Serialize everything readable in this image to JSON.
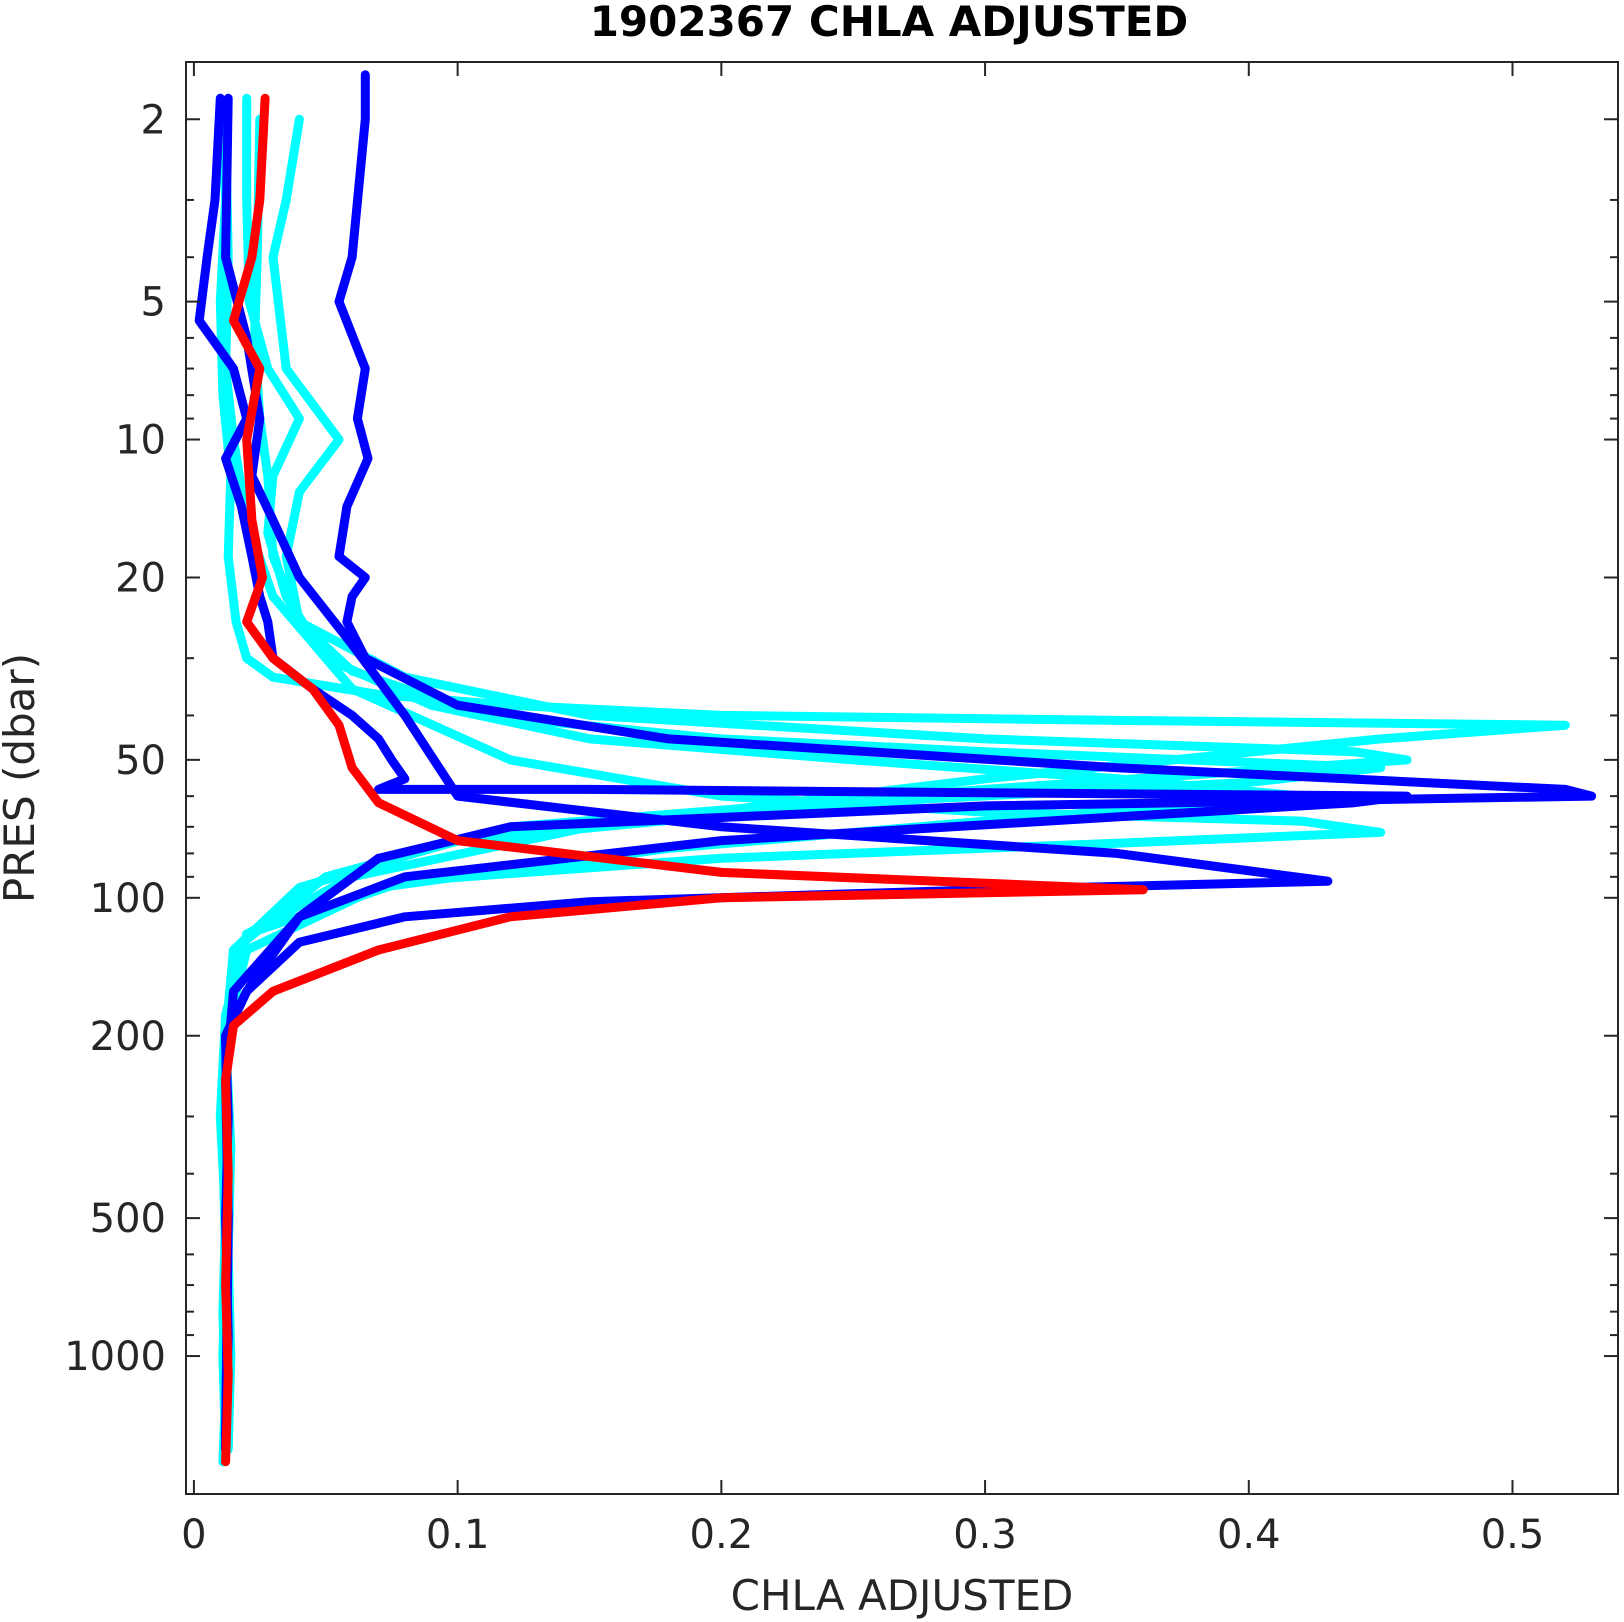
{
  "chart_data": {
    "type": "line",
    "title": "1902367  CHLA ADJUSTED",
    "xlabel": "CHLA ADJUSTED",
    "ylabel": "PRES (dbar)",
    "xlim": [
      -0.003,
      0.54
    ],
    "ylim": [
      1.5,
      2000
    ],
    "yscale": "log",
    "yreversed": true,
    "xticks": [
      0,
      0.1,
      0.2,
      0.3,
      0.4,
      0.5
    ],
    "xtick_labels": [
      "0",
      "0.1",
      "0.2",
      "0.3",
      "0.4",
      "0.5"
    ],
    "yticks": [
      2,
      5,
      10,
      20,
      50,
      100,
      200,
      500,
      1000
    ],
    "ytick_labels": [
      "2",
      "5",
      "10",
      "20",
      "50",
      "100",
      "200",
      "500",
      "1000"
    ],
    "grid": false,
    "colors": {
      "cyan": "#00ffff",
      "blue": "#0000ff",
      "red": "#ff0000",
      "axis": "#262626"
    },
    "series": [
      {
        "color": "#00ffff",
        "x": [
          0.01,
          0.012,
          0.01,
          0.011,
          0.014,
          0.013,
          0.016,
          0.02,
          0.03,
          0.07,
          0.12,
          0.2,
          0.35,
          0.52,
          0.45,
          0.3,
          0.15,
          0.06,
          0.02,
          0.012,
          0.01,
          0.012,
          0.011,
          0.012,
          0.011
        ],
        "y": [
          1.8,
          3,
          5,
          8,
          12,
          18,
          25,
          30,
          33,
          36,
          38,
          40,
          41,
          42,
          45,
          55,
          70,
          90,
          120,
          180,
          300,
          500,
          800,
          1200,
          1700
        ]
      },
      {
        "color": "#00ffff",
        "x": [
          0.04,
          0.035,
          0.03,
          0.035,
          0.055,
          0.04,
          0.035,
          0.04,
          0.06,
          0.11,
          0.2,
          0.3,
          0.45,
          0.4,
          0.25,
          0.1,
          0.04,
          0.015,
          0.012,
          0.014,
          0.013,
          0.014,
          0.013
        ],
        "y": [
          2,
          3,
          4,
          7,
          10,
          13,
          18,
          25,
          32,
          40,
          45,
          48,
          52,
          56,
          62,
          75,
          95,
          130,
          200,
          350,
          600,
          1000,
          1600
        ]
      },
      {
        "color": "#00ffff",
        "x": [
          0.02,
          0.02,
          0.021,
          0.028,
          0.04,
          0.03,
          0.028,
          0.035,
          0.05,
          0.09,
          0.15,
          0.25,
          0.35,
          0.42,
          0.3,
          0.18,
          0.07,
          0.02,
          0.012,
          0.011,
          0.012,
          0.011,
          0.012
        ],
        "y": [
          1.8,
          3,
          5,
          7,
          9,
          12,
          16,
          22,
          30,
          38,
          45,
          50,
          55,
          60,
          68,
          78,
          95,
          130,
          200,
          350,
          600,
          1000,
          1600
        ]
      },
      {
        "color": "#00ffff",
        "x": [
          0.025,
          0.024,
          0.023,
          0.025,
          0.028,
          0.03,
          0.04,
          0.08,
          0.15,
          0.3,
          0.44,
          0.46,
          0.3,
          0.12,
          0.05,
          0.015,
          0.012,
          0.013,
          0.012,
          0.013
        ],
        "y": [
          2,
          4,
          6,
          9,
          12,
          18,
          25,
          33,
          40,
          45,
          48,
          50,
          58,
          70,
          90,
          130,
          220,
          400,
          800,
          1500
        ]
      },
      {
        "color": "#00ffff",
        "x": [
          0.012,
          0.013,
          0.012,
          0.015,
          0.02,
          0.03,
          0.06,
          0.12,
          0.2,
          0.3,
          0.42,
          0.45,
          0.35,
          0.2,
          0.08,
          0.02,
          0.012,
          0.013,
          0.012
        ],
        "y": [
          2,
          4,
          7,
          10,
          15,
          22,
          35,
          50,
          60,
          65,
          68,
          72,
          76,
          82,
          92,
          120,
          200,
          500,
          1500
        ]
      },
      {
        "color": "#0000ff",
        "x": [
          0.065,
          0.065,
          0.06,
          0.055,
          0.065,
          0.062,
          0.066,
          0.058,
          0.055,
          0.065,
          0.06,
          0.058,
          0.065,
          0.1,
          0.18,
          0.35,
          0.52,
          0.53,
          0.3,
          0.12,
          0.07,
          0.04,
          0.02,
          0.012,
          0.013,
          0.012,
          0.013,
          0.012
        ],
        "y": [
          1.6,
          2,
          4,
          5,
          7,
          9,
          11,
          14,
          18,
          20,
          22,
          25,
          30,
          38,
          45,
          52,
          58,
          60,
          63,
          70,
          82,
          110,
          160,
          200,
          300,
          500,
          900,
          1600
        ]
      },
      {
        "color": "#0000ff",
        "x": [
          0.01,
          0.008,
          0.005,
          0.002,
          0.015,
          0.02,
          0.012,
          0.018,
          0.022,
          0.025,
          0.028,
          0.03,
          0.045,
          0.06,
          0.07,
          0.075,
          0.08,
          0.07,
          0.15,
          0.3,
          0.46,
          0.44,
          0.2,
          0.08,
          0.04,
          0.015,
          0.012,
          0.013,
          0.012
        ],
        "y": [
          1.8,
          3,
          4,
          5.5,
          7,
          9,
          11,
          14,
          18,
          22,
          25,
          30,
          35,
          40,
          45,
          50,
          55,
          58,
          58,
          59,
          60,
          62,
          75,
          90,
          110,
          160,
          250,
          500,
          1500
        ]
      },
      {
        "color": "#0000ff",
        "x": [
          0.013,
          0.012,
          0.02,
          0.025,
          0.022,
          0.03,
          0.04,
          0.06,
          0.08,
          0.1,
          0.2,
          0.35,
          0.43,
          0.3,
          0.15,
          0.08,
          0.04,
          0.02,
          0.012,
          0.013,
          0.012
        ],
        "y": [
          1.8,
          4,
          6,
          9,
          12,
          15,
          20,
          28,
          40,
          60,
          70,
          80,
          92,
          96,
          102,
          110,
          125,
          160,
          200,
          500,
          1600
        ]
      },
      {
        "color": "#ff0000",
        "x": [
          0.027,
          0.025,
          0.022,
          0.015,
          0.025,
          0.02,
          0.022,
          0.026,
          0.02,
          0.03,
          0.045,
          0.055,
          0.06,
          0.07,
          0.1,
          0.2,
          0.36,
          0.2,
          0.12,
          0.07,
          0.03,
          0.015,
          0.012,
          0.013,
          0.012,
          0.013,
          0.012
        ],
        "y": [
          1.8,
          3,
          4,
          5.5,
          7,
          10,
          15,
          20,
          25,
          30,
          35,
          42,
          52,
          62,
          75,
          88,
          96,
          100,
          110,
          130,
          160,
          190,
          250,
          400,
          700,
          1100,
          1700
        ]
      }
    ]
  }
}
